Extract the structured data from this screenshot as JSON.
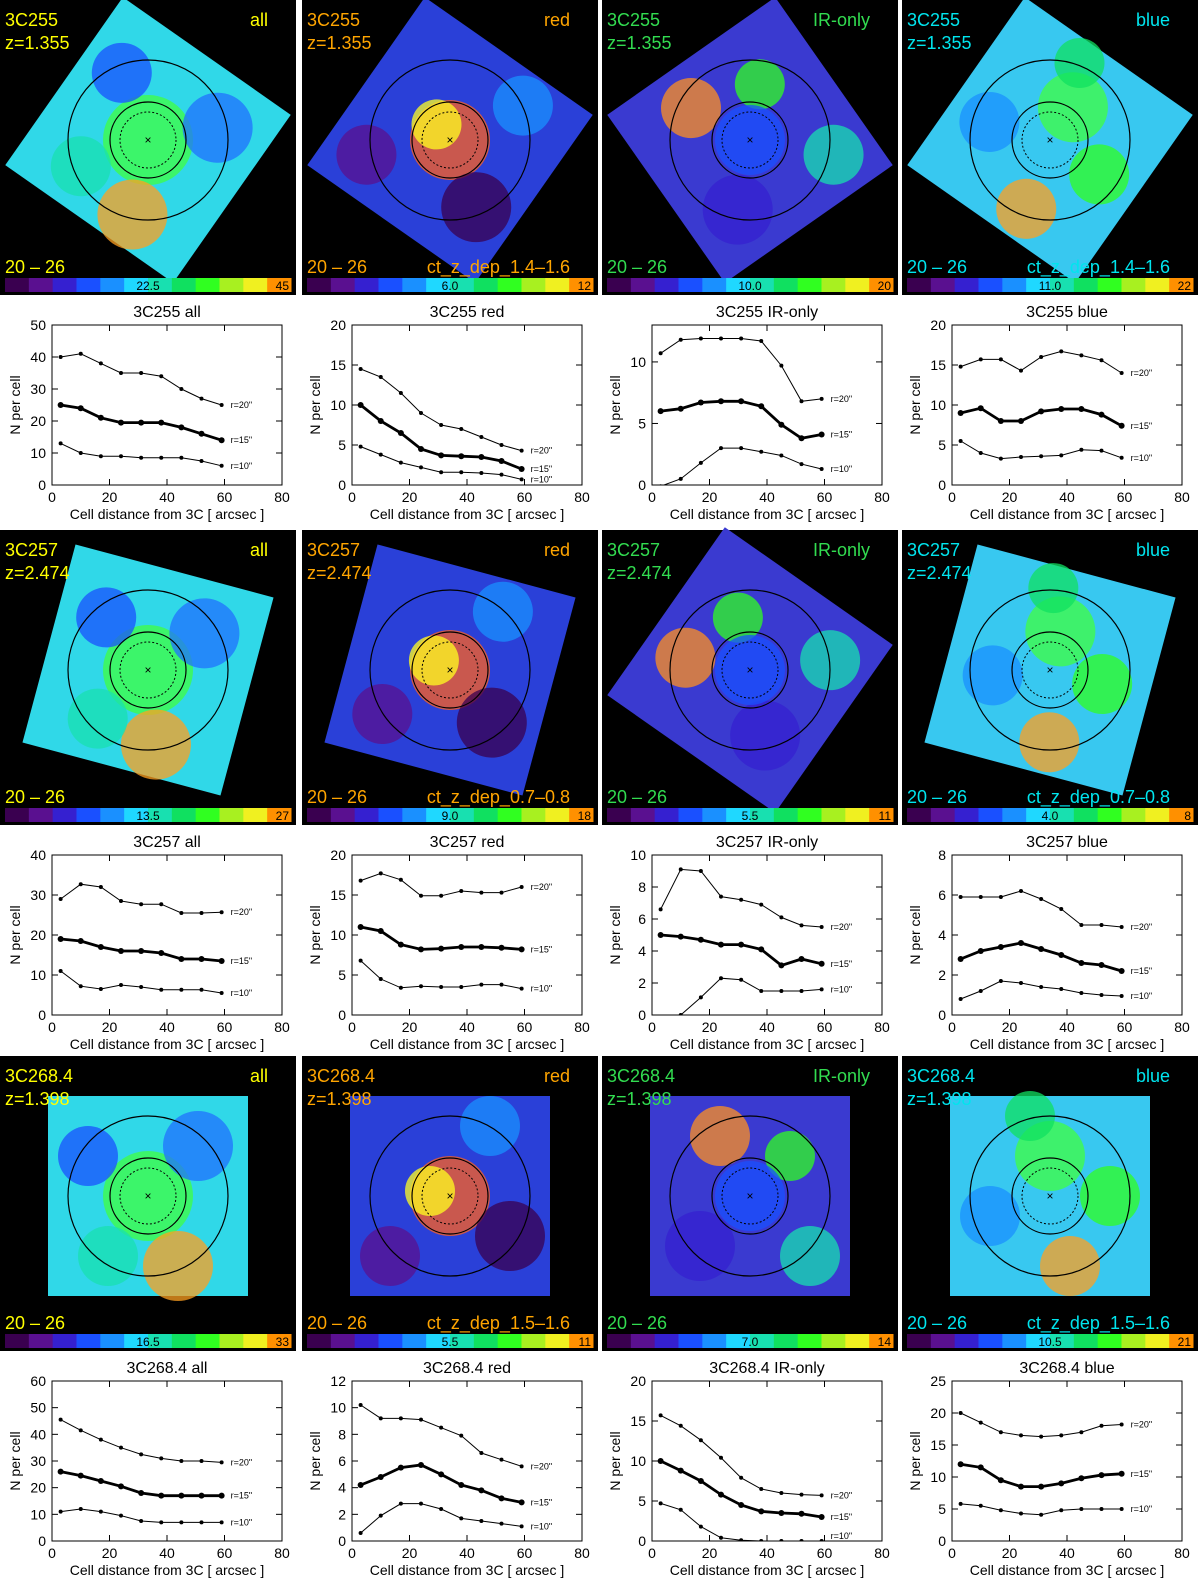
{
  "palette": {
    "all": "#ffff00",
    "red": "#ffa500",
    "IR-only": "#32dc50",
    "blue": "#00e5ee",
    "background": "#000000"
  },
  "colorbar_colors": [
    "#3a0050",
    "#5a1090",
    "#3520d0",
    "#1a50ff",
    "#1a90ff",
    "#1fd8ff",
    "#18e0b0",
    "#10e060",
    "#30ff20",
    "#a8f020",
    "#f0f020",
    "#ff9000"
  ],
  "common": {
    "mag_range": "20 – 26",
    "xlabel": "Cell distance from 3C  [ arcsec ]",
    "ylabel": "N per cell",
    "radius_labels": [
      "r=20\"",
      "r=15\"",
      "r=10\""
    ]
  },
  "panels": [
    {
      "source": "3C255",
      "z": "z=1.355",
      "maps": [
        {
          "sample": "all",
          "colorbar_mid": "22.5",
          "colorbar_max": "45",
          "dep": ""
        },
        {
          "sample": "red",
          "colorbar_mid": "6.0",
          "colorbar_max": "12",
          "dep": "ct_z_dep_1.4–1.6"
        },
        {
          "sample": "IR-only",
          "colorbar_mid": "10.0",
          "colorbar_max": "20",
          "dep": ""
        },
        {
          "sample": "blue",
          "colorbar_mid": "11.0",
          "colorbar_max": "22",
          "dep": "ct_z_dep_1.4–1.6"
        }
      ]
    },
    {
      "source": "3C257",
      "z": "z=2.474",
      "maps": [
        {
          "sample": "all",
          "colorbar_mid": "13.5",
          "colorbar_max": "27",
          "dep": ""
        },
        {
          "sample": "red",
          "colorbar_mid": "9.0",
          "colorbar_max": "18",
          "dep": "ct_z_dep_0.7–0.8"
        },
        {
          "sample": "IR-only",
          "colorbar_mid": "5.5",
          "colorbar_max": "11",
          "dep": ""
        },
        {
          "sample": "blue",
          "colorbar_mid": "4.0",
          "colorbar_max": "8",
          "dep": "ct_z_dep_0.7–0.8"
        }
      ]
    },
    {
      "source": "3C268.4",
      "z": "z=1.398",
      "maps": [
        {
          "sample": "all",
          "colorbar_mid": "16.5",
          "colorbar_max": "33",
          "dep": ""
        },
        {
          "sample": "red",
          "colorbar_mid": "5.5",
          "colorbar_max": "11",
          "dep": "ct_z_dep_1.5–1.6"
        },
        {
          "sample": "IR-only",
          "colorbar_mid": "7.0",
          "colorbar_max": "14",
          "dep": ""
        },
        {
          "sample": "blue",
          "colorbar_mid": "10.5",
          "colorbar_max": "21",
          "dep": "ct_z_dep_1.5–1.6"
        }
      ]
    }
  ],
  "chart_data": [
    {
      "type": "line",
      "title": "3C255  all",
      "xlim": [
        0,
        80
      ],
      "ylim": [
        0,
        50
      ],
      "yticks": [
        0,
        10,
        20,
        30,
        40,
        50
      ],
      "xticks": [
        0,
        20,
        40,
        60,
        80
      ],
      "x": [
        3,
        10,
        17,
        24,
        31,
        38,
        45,
        52,
        59
      ],
      "series": [
        {
          "name": "r=20\"",
          "values": [
            40,
            41,
            38,
            35,
            35,
            34,
            30,
            27,
            25
          ]
        },
        {
          "name": "r=15\"",
          "values": [
            25,
            24,
            21,
            19.5,
            19.5,
            19.5,
            18,
            16,
            14
          ]
        },
        {
          "name": "r=10\"",
          "values": [
            13,
            10,
            9,
            9,
            8.5,
            8.5,
            8.5,
            7.5,
            6
          ]
        }
      ]
    },
    {
      "type": "line",
      "title": "3C255  red",
      "xlim": [
        0,
        80
      ],
      "ylim": [
        0,
        20
      ],
      "yticks": [
        0,
        5,
        10,
        15,
        20
      ],
      "xticks": [
        0,
        20,
        40,
        60,
        80
      ],
      "x": [
        3,
        10,
        17,
        24,
        31,
        38,
        45,
        52,
        59
      ],
      "series": [
        {
          "name": "r=20\"",
          "values": [
            14.5,
            13.5,
            11.5,
            9,
            7.5,
            7,
            6,
            5,
            4.3
          ]
        },
        {
          "name": "r=15\"",
          "values": [
            10,
            8,
            6.5,
            4.5,
            3.7,
            3.6,
            3.5,
            3,
            2
          ]
        },
        {
          "name": "r=10\"",
          "values": [
            4.8,
            3.8,
            2.8,
            2.2,
            1.6,
            1.6,
            1.5,
            1.3,
            0.7
          ]
        }
      ]
    },
    {
      "type": "line",
      "title": "3C255  IR-only",
      "xlim": [
        0,
        80
      ],
      "ylim": [
        0,
        13
      ],
      "yticks": [
        0,
        5,
        10
      ],
      "xticks": [
        0,
        20,
        40,
        60,
        80
      ],
      "x": [
        3,
        10,
        17,
        24,
        31,
        38,
        45,
        52,
        59
      ],
      "series": [
        {
          "name": "r=20\"",
          "values": [
            10.7,
            11.8,
            11.9,
            11.9,
            11.9,
            11.7,
            9.7,
            6.8,
            7.0
          ]
        },
        {
          "name": "r=15\"",
          "values": [
            6.0,
            6.2,
            6.7,
            6.8,
            6.8,
            6.4,
            4.9,
            3.8,
            4.1
          ]
        },
        {
          "name": "r=10\"",
          "values": [
            -0.1,
            0.5,
            1.8,
            3.0,
            3.0,
            2.7,
            2.4,
            1.7,
            1.3
          ]
        }
      ]
    },
    {
      "type": "line",
      "title": "3C255  blue",
      "xlim": [
        0,
        80
      ],
      "ylim": [
        0,
        20
      ],
      "yticks": [
        0,
        5,
        10,
        15,
        20
      ],
      "xticks": [
        0,
        20,
        40,
        60,
        80
      ],
      "x": [
        3,
        10,
        17,
        24,
        31,
        38,
        45,
        52,
        59
      ],
      "series": [
        {
          "name": "r=20\"",
          "values": [
            14.8,
            15.7,
            15.7,
            14.3,
            16.0,
            16.7,
            16.2,
            15.6,
            14.0
          ]
        },
        {
          "name": "r=15\"",
          "values": [
            9.0,
            9.6,
            8.0,
            8.0,
            9.2,
            9.5,
            9.5,
            8.8,
            7.4
          ]
        },
        {
          "name": "r=10\"",
          "values": [
            5.5,
            4.0,
            3.3,
            3.5,
            3.6,
            3.7,
            4.4,
            4.3,
            3.4
          ]
        }
      ]
    },
    {
      "type": "line",
      "title": "3C257  all",
      "xlim": [
        0,
        80
      ],
      "ylim": [
        0,
        40
      ],
      "yticks": [
        0,
        10,
        20,
        30,
        40
      ],
      "xticks": [
        0,
        20,
        40,
        60,
        80
      ],
      "x": [
        3,
        10,
        17,
        24,
        31,
        38,
        45,
        52,
        59
      ],
      "series": [
        {
          "name": "r=20\"",
          "values": [
            29,
            32.7,
            32,
            28.5,
            27.7,
            27.7,
            25.5,
            25.5,
            25.7
          ]
        },
        {
          "name": "r=15\"",
          "values": [
            19,
            18.5,
            17,
            16,
            16,
            15.5,
            14,
            14,
            13.5
          ]
        },
        {
          "name": "r=10\"",
          "values": [
            11,
            7.2,
            6.5,
            7.5,
            7,
            6.3,
            6.3,
            6.3,
            5.5
          ]
        }
      ]
    },
    {
      "type": "line",
      "title": "3C257  red",
      "xlim": [
        0,
        80
      ],
      "ylim": [
        0,
        20
      ],
      "yticks": [
        0,
        5,
        10,
        15,
        20
      ],
      "xticks": [
        0,
        20,
        40,
        60,
        80
      ],
      "x": [
        3,
        10,
        17,
        24,
        31,
        38,
        45,
        52,
        59
      ],
      "series": [
        {
          "name": "r=20\"",
          "values": [
            16.8,
            17.7,
            16.9,
            14.9,
            14.9,
            15.5,
            15.3,
            15.3,
            16.0
          ]
        },
        {
          "name": "r=15\"",
          "values": [
            11,
            10.5,
            8.8,
            8.2,
            8.3,
            8.5,
            8.5,
            8.4,
            8.2
          ]
        },
        {
          "name": "r=10\"",
          "values": [
            6.8,
            4.5,
            3.4,
            3.6,
            3.5,
            3.5,
            3.8,
            3.8,
            3.3
          ]
        }
      ]
    },
    {
      "type": "line",
      "title": "3C257  IR-only",
      "xlim": [
        0,
        80
      ],
      "ylim": [
        0,
        10
      ],
      "yticks": [
        0,
        2,
        4,
        6,
        8,
        10
      ],
      "xticks": [
        0,
        20,
        40,
        60,
        80
      ],
      "x": [
        3,
        10,
        17,
        24,
        31,
        38,
        45,
        52,
        59
      ],
      "series": [
        {
          "name": "r=20\"",
          "values": [
            6.6,
            9.1,
            9.0,
            7.4,
            7.2,
            6.9,
            6.1,
            5.6,
            5.5
          ]
        },
        {
          "name": "r=15\"",
          "values": [
            5.0,
            4.9,
            4.7,
            4.4,
            4.4,
            4.1,
            3.1,
            3.5,
            3.2
          ]
        },
        {
          "name": "r=10\"",
          "values": [
            -0.1,
            0,
            1.1,
            2.3,
            2.2,
            1.5,
            1.5,
            1.5,
            1.6
          ]
        }
      ]
    },
    {
      "type": "line",
      "title": "3C257  blue",
      "xlim": [
        0,
        80
      ],
      "ylim": [
        0,
        8
      ],
      "yticks": [
        0,
        2,
        4,
        6,
        8
      ],
      "xticks": [
        0,
        20,
        40,
        60,
        80
      ],
      "x": [
        3,
        10,
        17,
        24,
        31,
        38,
        45,
        52,
        59
      ],
      "series": [
        {
          "name": "r=20\"",
          "values": [
            5.9,
            5.9,
            5.9,
            6.2,
            5.8,
            5.3,
            4.5,
            4.5,
            4.4
          ]
        },
        {
          "name": "r=15\"",
          "values": [
            2.8,
            3.2,
            3.4,
            3.6,
            3.3,
            3.0,
            2.6,
            2.5,
            2.2
          ]
        },
        {
          "name": "r=10\"",
          "values": [
            0.8,
            1.2,
            1.7,
            1.6,
            1.4,
            1.3,
            1.1,
            1.0,
            0.95
          ]
        }
      ]
    },
    {
      "type": "line",
      "title": "3C268.4  all",
      "xlim": [
        0,
        80
      ],
      "ylim": [
        0,
        60
      ],
      "yticks": [
        0,
        10,
        20,
        30,
        40,
        50,
        60
      ],
      "xticks": [
        0,
        20,
        40,
        60,
        80
      ],
      "x": [
        3,
        10,
        17,
        24,
        31,
        38,
        45,
        52,
        59
      ],
      "series": [
        {
          "name": "r=20\"",
          "values": [
            45.5,
            41.5,
            38,
            35,
            32.5,
            31,
            30,
            30,
            29.5
          ]
        },
        {
          "name": "r=15\"",
          "values": [
            26,
            24.5,
            22.5,
            20.5,
            18,
            17,
            17,
            17,
            17
          ]
        },
        {
          "name": "r=10\"",
          "values": [
            11,
            12,
            11,
            9.5,
            7.5,
            7,
            7,
            7,
            7
          ]
        }
      ]
    },
    {
      "type": "line",
      "title": "3C268.4  red",
      "xlim": [
        0,
        80
      ],
      "ylim": [
        0,
        12
      ],
      "yticks": [
        0,
        2,
        4,
        6,
        8,
        10,
        12
      ],
      "xticks": [
        0,
        20,
        40,
        60,
        80
      ],
      "x": [
        3,
        10,
        17,
        24,
        31,
        38,
        45,
        52,
        59
      ],
      "series": [
        {
          "name": "r=20\"",
          "values": [
            10.2,
            9.2,
            9.2,
            9.1,
            8.5,
            7.9,
            6.6,
            6.1,
            5.6
          ]
        },
        {
          "name": "r=15\"",
          "values": [
            4.2,
            4.8,
            5.5,
            5.7,
            5.0,
            4.2,
            3.8,
            3.2,
            2.9
          ]
        },
        {
          "name": "r=10\"",
          "values": [
            0.6,
            1.9,
            2.8,
            2.8,
            2.4,
            1.7,
            1.5,
            1.3,
            1.1
          ]
        }
      ]
    },
    {
      "type": "line",
      "title": "3C268.4  IR-only",
      "xlim": [
        0,
        80
      ],
      "ylim": [
        0,
        20
      ],
      "yticks": [
        0,
        5,
        10,
        15,
        20
      ],
      "xticks": [
        0,
        20,
        40,
        60,
        80
      ],
      "x": [
        3,
        10,
        17,
        24,
        31,
        38,
        45,
        52,
        59
      ],
      "series": [
        {
          "name": "r=20\"",
          "values": [
            15.7,
            14.4,
            12.6,
            10.4,
            7.9,
            6.5,
            6.0,
            5.8,
            5.7
          ]
        },
        {
          "name": "r=15\"",
          "values": [
            10.0,
            8.8,
            7.5,
            5.8,
            4.5,
            3.7,
            3.5,
            3.4,
            3.0
          ]
        },
        {
          "name": "r=10\"",
          "values": [
            4.7,
            3.9,
            1.8,
            0.4,
            0.1,
            0,
            0,
            0,
            0
          ]
        }
      ]
    },
    {
      "type": "line",
      "title": "3C268.4  blue",
      "xlim": [
        0,
        80
      ],
      "ylim": [
        0,
        25
      ],
      "yticks": [
        0,
        5,
        10,
        15,
        20,
        25
      ],
      "xticks": [
        0,
        20,
        40,
        60,
        80
      ],
      "x": [
        3,
        10,
        17,
        24,
        31,
        38,
        45,
        52,
        59
      ],
      "series": [
        {
          "name": "r=20\"",
          "values": [
            20,
            18.5,
            17,
            16.5,
            16.3,
            16.5,
            17,
            18,
            18.2
          ]
        },
        {
          "name": "r=15\"",
          "values": [
            12,
            11.5,
            9.5,
            8.5,
            8.5,
            9,
            9.8,
            10.3,
            10.5
          ]
        },
        {
          "name": "r=10\"",
          "values": [
            5.8,
            5.5,
            4.8,
            4.3,
            4.1,
            4.8,
            5,
            5,
            5
          ]
        }
      ]
    }
  ]
}
